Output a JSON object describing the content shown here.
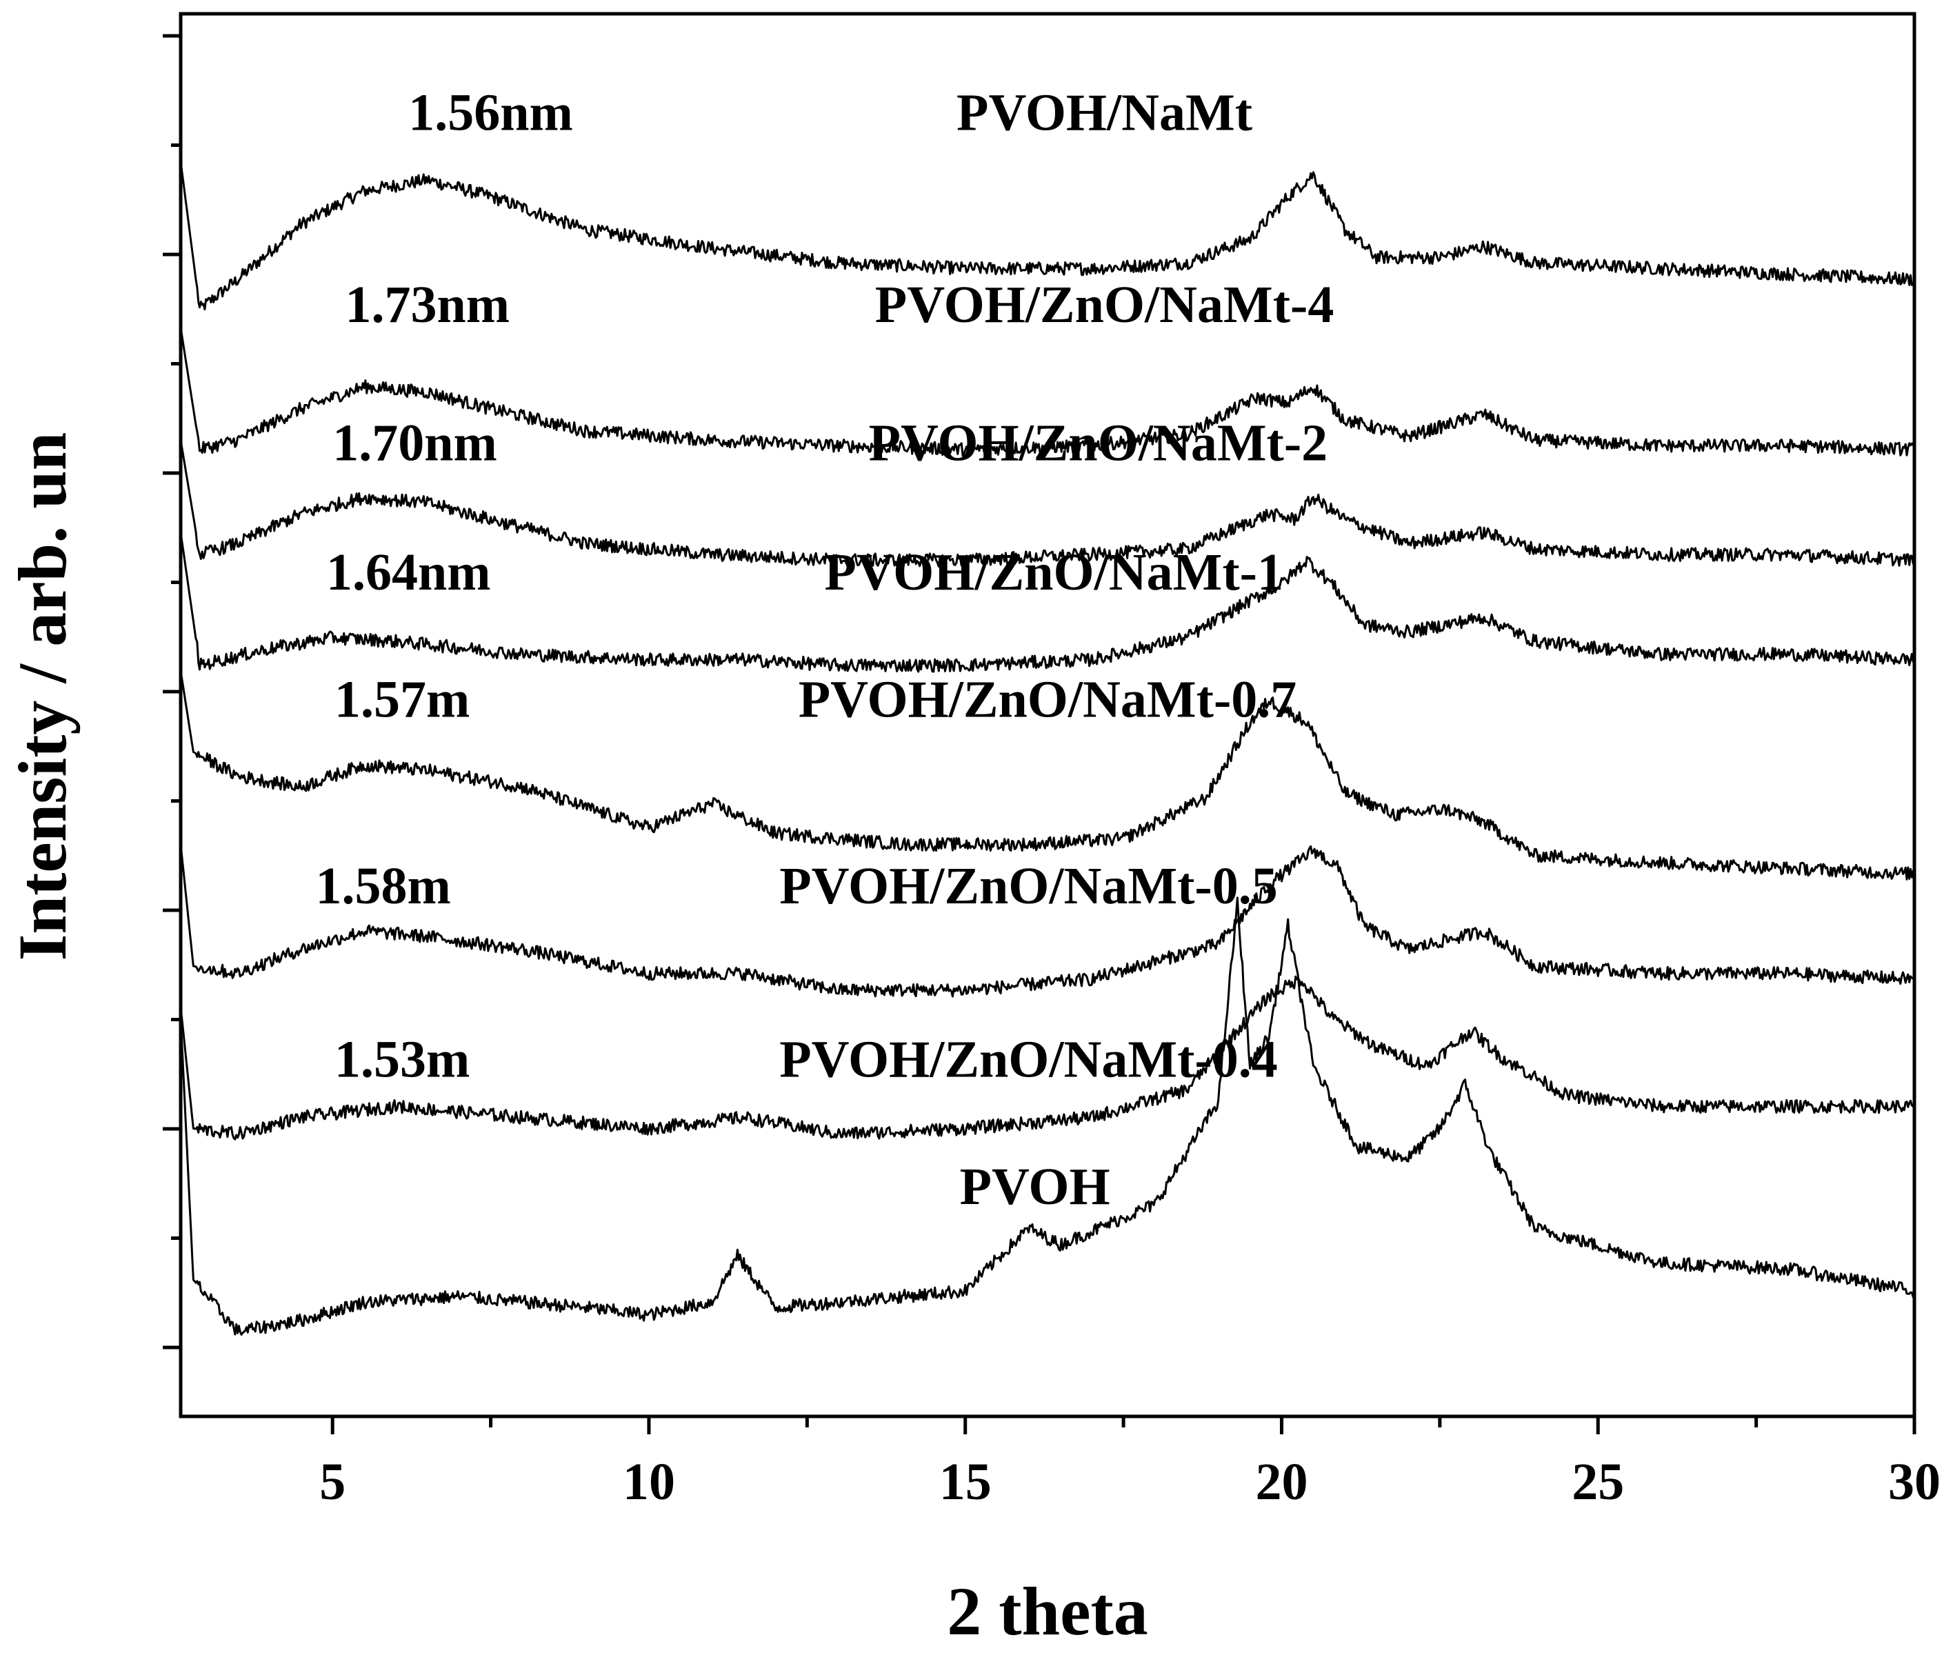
{
  "chart_data": {
    "type": "line",
    "title": "",
    "xlabel": "2 theta",
    "ylabel": "Intensity / arb. un",
    "xlim": [
      2.6,
      30
    ],
    "xticks": [
      "5",
      "10",
      "15",
      "20",
      "25",
      "30"
    ],
    "y_ticklabels_shown": false,
    "series": [
      {
        "name": "PVOH/NaMt",
        "spacing": "1.56nm",
        "offset": 28.6,
        "points": [
          [
            2.6,
            32
          ],
          [
            2.9,
            24
          ],
          [
            3.5,
            25.6
          ],
          [
            4.5,
            28.6
          ],
          [
            5.5,
            30.4
          ],
          [
            6.5,
            31
          ],
          [
            7.5,
            30.1
          ],
          [
            9,
            28.3
          ],
          [
            11,
            27.3
          ],
          [
            13,
            26.5
          ],
          [
            15,
            26.2
          ],
          [
            17,
            26.2
          ],
          [
            18.5,
            26.5
          ],
          [
            19.5,
            27.8
          ],
          [
            20.1,
            30.1
          ],
          [
            20.5,
            31.3
          ],
          [
            21,
            28.3
          ],
          [
            21.5,
            26.8
          ],
          [
            22.5,
            26.8
          ],
          [
            23.2,
            27.4
          ],
          [
            24,
            26.5
          ],
          [
            26,
            26.2
          ],
          [
            28,
            25.9
          ],
          [
            30,
            25.6
          ]
        ]
      },
      {
        "name": "PVOH/ZnO/NaMt-4",
        "spacing": "1.73nm",
        "offset": 19.5,
        "points": [
          [
            2.6,
            23
          ],
          [
            2.9,
            16.4
          ],
          [
            3.5,
            16.9
          ],
          [
            4.5,
            18.6
          ],
          [
            5.5,
            19.8
          ],
          [
            6.5,
            19.5
          ],
          [
            7.5,
            18.6
          ],
          [
            9,
            17.4
          ],
          [
            11,
            16.9
          ],
          [
            13,
            16.6
          ],
          [
            15,
            16.4
          ],
          [
            17,
            16.6
          ],
          [
            18.5,
            17.2
          ],
          [
            19.6,
            19.2
          ],
          [
            20.1,
            18.9
          ],
          [
            20.5,
            19.8
          ],
          [
            21,
            18
          ],
          [
            22,
            17.1
          ],
          [
            23.2,
            18.3
          ],
          [
            24,
            16.9
          ],
          [
            26,
            16.6
          ],
          [
            28,
            16.6
          ],
          [
            30,
            16.4
          ]
        ]
      },
      {
        "name": "PVOH/ZnO/NaMt-2",
        "spacing": "1.70nm",
        "offset": 12.9,
        "points": [
          [
            2.6,
            16.9
          ],
          [
            2.9,
            10.7
          ],
          [
            3.5,
            11.3
          ],
          [
            4.5,
            12.9
          ],
          [
            5.5,
            13.8
          ],
          [
            6.5,
            13.5
          ],
          [
            7.5,
            12.6
          ],
          [
            9,
            11.3
          ],
          [
            11,
            10.7
          ],
          [
            13,
            10.4
          ],
          [
            15,
            10.4
          ],
          [
            17,
            10.7
          ],
          [
            18.5,
            11
          ],
          [
            19.8,
            12.9
          ],
          [
            20.2,
            12.6
          ],
          [
            20.5,
            13.8
          ],
          [
            21,
            12.6
          ],
          [
            22,
            11.3
          ],
          [
            23.2,
            11.9
          ],
          [
            24,
            11
          ],
          [
            26,
            10.7
          ],
          [
            28,
            10.7
          ],
          [
            30,
            10.4
          ]
        ]
      },
      {
        "name": "PVOH/ZnO/NaMt-1",
        "spacing": "1.64nm",
        "offset": 7.9,
        "points": [
          [
            2.6,
            11.9
          ],
          [
            2.9,
            4.7
          ],
          [
            4,
            5.6
          ],
          [
            5,
            6.2
          ],
          [
            6,
            6
          ],
          [
            8,
            5.3
          ],
          [
            10,
            5
          ],
          [
            11.5,
            5
          ],
          [
            13,
            4.7
          ],
          [
            15,
            4.7
          ],
          [
            17,
            5
          ],
          [
            18.5,
            6.2
          ],
          [
            19.5,
            8.2
          ],
          [
            20,
            9.1
          ],
          [
            20.4,
            10.4
          ],
          [
            20.8,
            9.1
          ],
          [
            21.3,
            6.9
          ],
          [
            22,
            6.5
          ],
          [
            23.2,
            7.3
          ],
          [
            24,
            6
          ],
          [
            26,
            5.3
          ],
          [
            28,
            5.3
          ],
          [
            30,
            5
          ]
        ]
      },
      {
        "name": "PVOH/ZnO/NaMt-0.7",
        "spacing": "1.57m",
        "offset": 0,
        "points": [
          [
            2.6,
            4.4
          ],
          [
            2.8,
            0
          ],
          [
            3.5,
            -1.3
          ],
          [
            4.5,
            -1.9
          ],
          [
            5.5,
            -0.7
          ],
          [
            6.5,
            -1
          ],
          [
            8,
            -1.9
          ],
          [
            10,
            -4.1
          ],
          [
            11,
            -2.8
          ],
          [
            12,
            -4.4
          ],
          [
            14,
            -5
          ],
          [
            16,
            -5
          ],
          [
            17.5,
            -4.7
          ],
          [
            18.8,
            -2.5
          ],
          [
            19.5,
            1.6
          ],
          [
            19.8,
            2.8
          ],
          [
            20.4,
            1.6
          ],
          [
            21,
            -2.2
          ],
          [
            21.8,
            -3.4
          ],
          [
            22.6,
            -3.1
          ],
          [
            23.2,
            -3.8
          ],
          [
            24,
            -5.6
          ],
          [
            26,
            -6
          ],
          [
            28,
            -6.3
          ],
          [
            30,
            -6.6
          ]
        ]
      },
      {
        "name": "PVOH/ZnO/NaMt-0.5",
        "spacing": "1.58m",
        "offset": -7.9,
        "points": [
          [
            2.6,
            -5
          ],
          [
            2.8,
            -11.6
          ],
          [
            3.5,
            -12
          ],
          [
            4.5,
            -10.7
          ],
          [
            5.5,
            -9.7
          ],
          [
            6.5,
            -10
          ],
          [
            8,
            -10.7
          ],
          [
            10,
            -12
          ],
          [
            11.5,
            -12
          ],
          [
            13,
            -12.9
          ],
          [
            15,
            -12.9
          ],
          [
            17,
            -12.3
          ],
          [
            19,
            -10.4
          ],
          [
            19.8,
            -7.2
          ],
          [
            20.5,
            -5.3
          ],
          [
            20.9,
            -6.3
          ],
          [
            21.3,
            -9.4
          ],
          [
            22,
            -10.7
          ],
          [
            23.2,
            -9.7
          ],
          [
            24,
            -11.6
          ],
          [
            26,
            -12
          ],
          [
            28,
            -12
          ],
          [
            30,
            -12.3
          ]
        ]
      },
      {
        "name": "PVOH/ZnO/NaMt-0.4",
        "spacing": "1.53m",
        "offset": -16,
        "points": [
          [
            2.6,
            -13.8
          ],
          [
            2.8,
            -20.4
          ],
          [
            3.5,
            -20.7
          ],
          [
            4.5,
            -19.8
          ],
          [
            6,
            -19.2
          ],
          [
            8,
            -19.8
          ],
          [
            10,
            -20.4
          ],
          [
            11.5,
            -19.8
          ],
          [
            13,
            -20.7
          ],
          [
            15,
            -20.4
          ],
          [
            17,
            -19.8
          ],
          [
            18.5,
            -18.3
          ],
          [
            19.3,
            -15.1
          ],
          [
            19.8,
            -13.2
          ],
          [
            20.3,
            -12.3
          ],
          [
            20.8,
            -14.4
          ],
          [
            21.5,
            -16
          ],
          [
            22.3,
            -17
          ],
          [
            23,
            -15.1
          ],
          [
            23.5,
            -16.6
          ],
          [
            24.5,
            -18.6
          ],
          [
            26,
            -19.2
          ],
          [
            28,
            -19.2
          ],
          [
            30,
            -19.2
          ]
        ]
      },
      {
        "name": "PVOH",
        "spacing": "",
        "offset": -28.3,
        "points": [
          [
            2.6,
            -14.4
          ],
          [
            2.8,
            -28.6
          ],
          [
            3.5,
            -31.4
          ],
          [
            4.5,
            -30.8
          ],
          [
            5.5,
            -29.8
          ],
          [
            7,
            -29.5
          ],
          [
            9,
            -30.1
          ],
          [
            10,
            -30.5
          ],
          [
            11,
            -29.8
          ],
          [
            11.4,
            -27.3
          ],
          [
            12,
            -30.1
          ],
          [
            13,
            -29.8
          ],
          [
            15,
            -29.2
          ],
          [
            16,
            -25.8
          ],
          [
            16.5,
            -26.7
          ],
          [
            18,
            -24.5
          ],
          [
            19,
            -18.9
          ],
          [
            19.3,
            -8.2
          ],
          [
            19.5,
            -17
          ],
          [
            19.8,
            -15.4
          ],
          [
            20.1,
            -9.4
          ],
          [
            20.5,
            -17
          ],
          [
            21.2,
            -21.4
          ],
          [
            22,
            -22
          ],
          [
            22.5,
            -20.4
          ],
          [
            22.9,
            -18
          ],
          [
            23.3,
            -21.7
          ],
          [
            24,
            -25.8
          ],
          [
            26,
            -27.7
          ],
          [
            28,
            -28
          ],
          [
            30,
            -29.2
          ]
        ]
      }
    ],
    "labels": [
      {
        "series": "PVOH/NaMt",
        "spacing": "1.56nm",
        "name_x": 17.2,
        "spacing_x": 7.5,
        "y": 33.7
      },
      {
        "series": "PVOH/ZnO/NaMt-4",
        "spacing": "1.73nm",
        "name_x": 17.2,
        "spacing_x": 6.5,
        "y": 23.3
      },
      {
        "series": "PVOH/ZnO/NaMt-2",
        "spacing": "1.70nm",
        "name_x": 17.1,
        "spacing_x": 6.3,
        "y": 15.8
      },
      {
        "series": "PVOH/ZnO/NaMt-1",
        "spacing": "1.64nm",
        "name_x": 16.4,
        "spacing_x": 6.2,
        "y": 8.8
      },
      {
        "series": "PVOH/ZnO/NaMt-0.7",
        "spacing": "1.57m",
        "name_x": 16.3,
        "spacing_x": 6.1,
        "y": 1.9
      },
      {
        "series": "PVOH/ZnO/NaMt-0.5",
        "spacing": "1.58m",
        "name_x": 16.0,
        "spacing_x": 5.8,
        "y": -8.2
      },
      {
        "series": "PVOH/ZnO/NaMt-0.4",
        "spacing": "1.53m",
        "name_x": 16.0,
        "spacing_x": 6.1,
        "y": -17.6
      },
      {
        "series": "PVOH",
        "spacing": "",
        "name_x": 16.1,
        "spacing_x": 0,
        "y": -24.5
      }
    ],
    "ylim": [
      -36,
      40
    ]
  }
}
